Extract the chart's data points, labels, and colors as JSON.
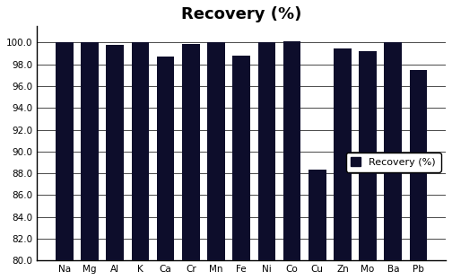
{
  "categories": [
    "Na",
    "Mg",
    "Al",
    "K",
    "Ca",
    "Cr",
    "Mn",
    "Fe",
    "Ni",
    "Co",
    "Cu",
    "Zn",
    "Mo",
    "Ba",
    "Pb"
  ],
  "values": [
    100.0,
    100.0,
    99.8,
    100.0,
    98.7,
    99.9,
    100.0,
    98.8,
    100.0,
    100.1,
    88.3,
    99.5,
    99.2,
    100.0,
    97.5
  ],
  "bar_color": "#0d0d2b",
  "title": "Recovery (%)",
  "ylim": [
    80.0,
    101.5
  ],
  "yticks": [
    80.0,
    82.0,
    84.0,
    86.0,
    88.0,
    90.0,
    92.0,
    94.0,
    96.0,
    98.0,
    100.0
  ],
  "legend_label": "Recovery (%)",
  "title_fontsize": 13,
  "tick_fontsize": 7.5,
  "legend_fontsize": 8,
  "background_color": "#ffffff"
}
